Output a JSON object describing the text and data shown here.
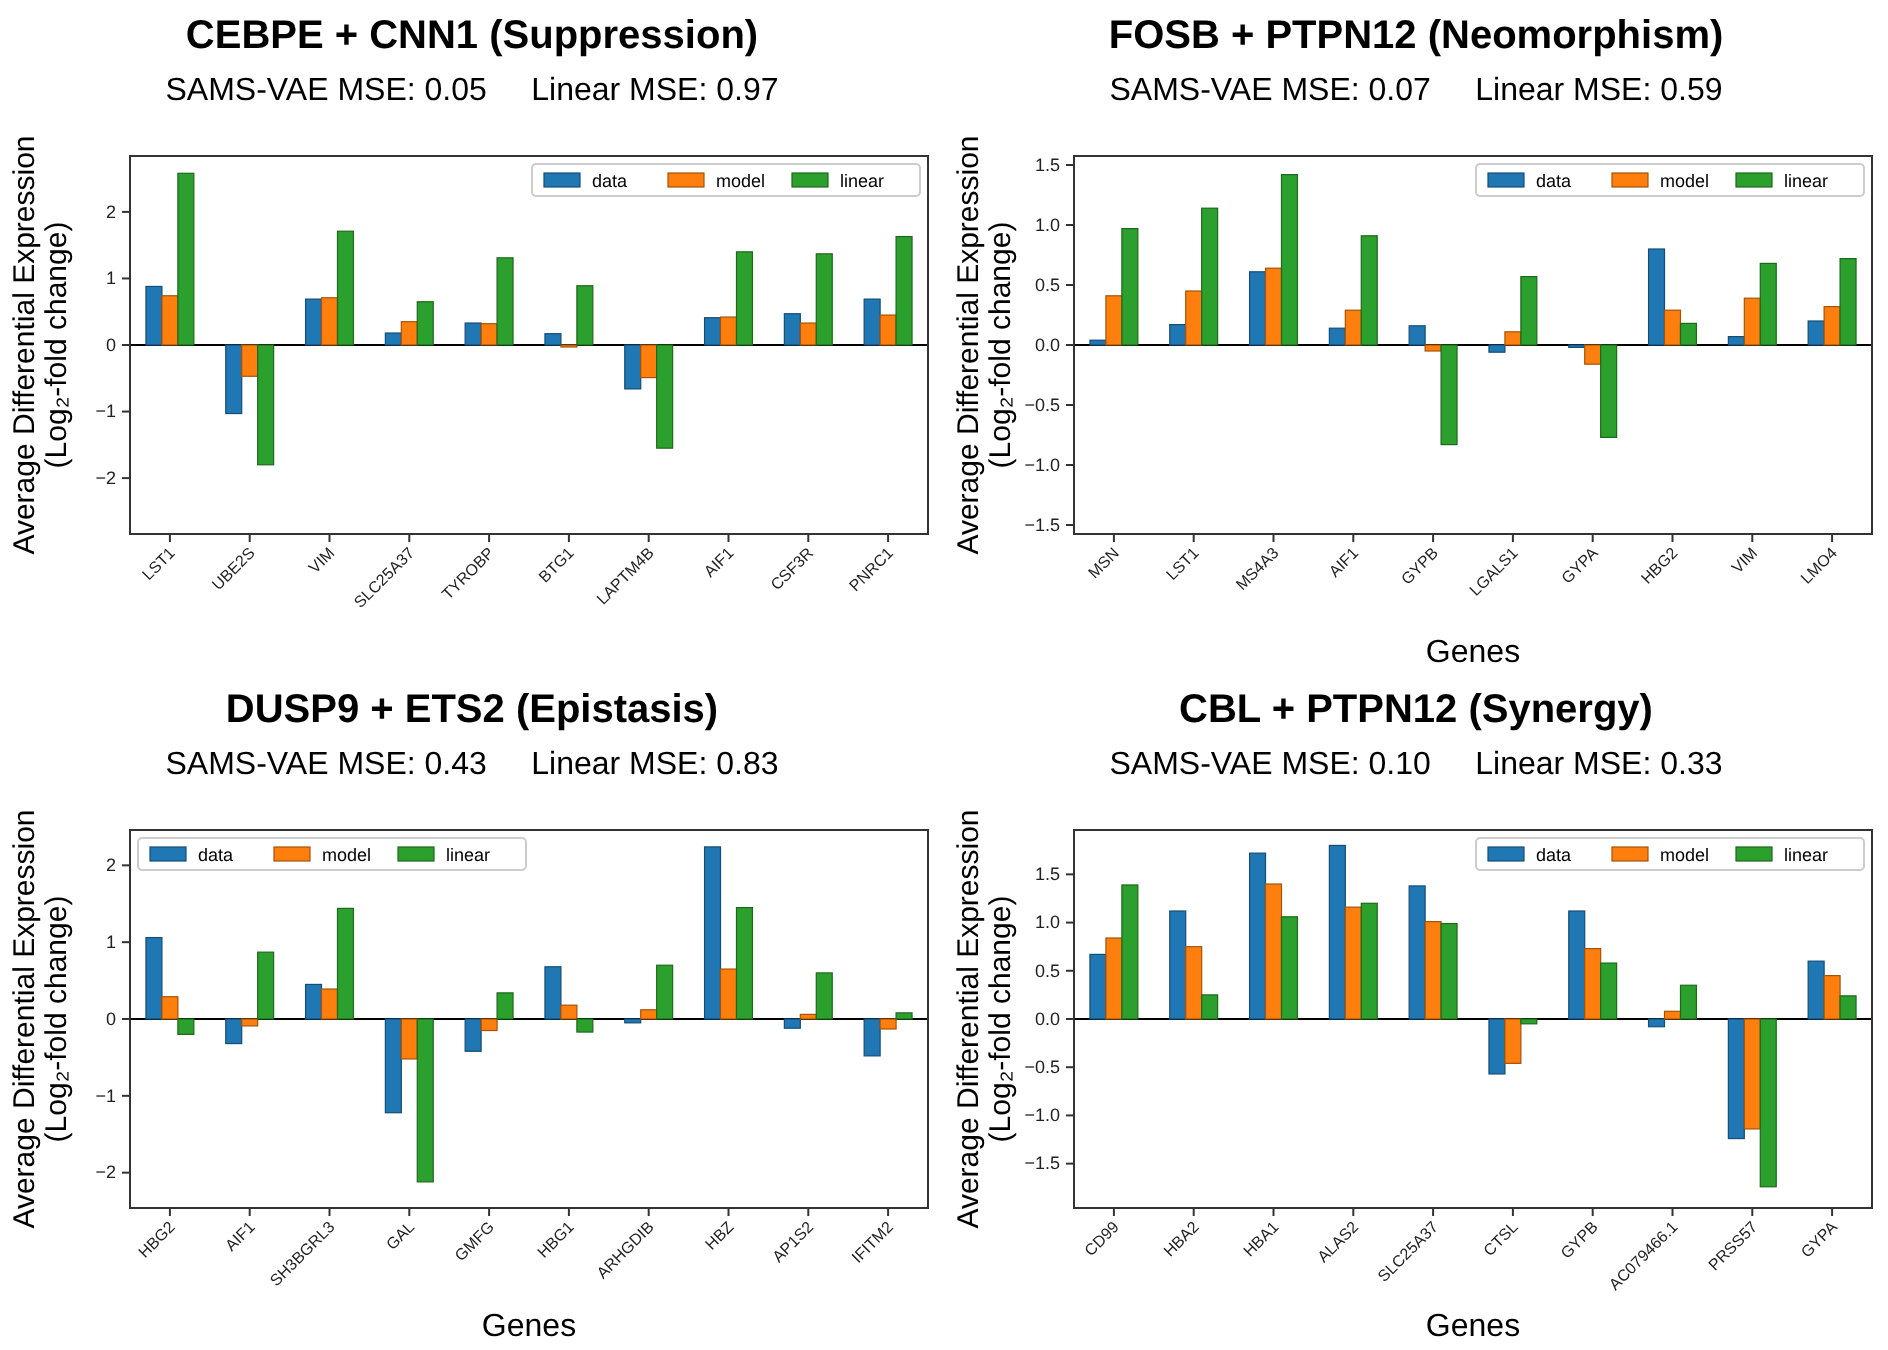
{
  "chart_data": [
    {
      "type": "bar",
      "title": "CEBPE + CNN1 (Suppression)",
      "subtitle": "SAMS-VAE MSE: 0.05     Linear MSE: 0.97",
      "ylabel": "Average Differential Expression\n(Log₂-fold change)",
      "categories": [
        "LST1",
        "UBE2S",
        "VIM",
        "SLC25A37",
        "TYROBP",
        "BTG1",
        "LAPTM4B",
        "AIF1",
        "CSF3R",
        "PNRC1"
      ],
      "series": [
        {
          "name": "data",
          "color": "#1f77b4",
          "values": [
            0.88,
            -1.03,
            0.69,
            0.18,
            0.33,
            0.17,
            -0.66,
            0.41,
            0.47,
            0.69
          ]
        },
        {
          "name": "model",
          "color": "#ff7f0e",
          "values": [
            0.74,
            -0.47,
            0.71,
            0.35,
            0.32,
            -0.03,
            -0.49,
            0.42,
            0.33,
            0.45
          ]
        },
        {
          "name": "linear",
          "color": "#2ca02c",
          "values": [
            2.58,
            -1.8,
            1.71,
            0.65,
            1.31,
            0.89,
            -1.55,
            1.4,
            1.37,
            1.63
          ]
        }
      ],
      "ylim": [
        -2.84,
        2.84
      ],
      "yticks": [
        -2,
        -1,
        0,
        1,
        2
      ],
      "ref_lines": [
        {
          "axis": "y",
          "value": 0,
          "label": null,
          "color": "#000000"
        }
      ],
      "grid": false,
      "legend": "top right"
    },
    {
      "type": "bar",
      "title": "FOSB + PTPN12 (Neomorphism)",
      "subtitle": "SAMS-VAE MSE: 0.07     Linear MSE: 0.59",
      "xlabel": "Genes",
      "ylabel": "Average Differential Expression\n(Log₂-fold change)",
      "categories": [
        "MSN",
        "LST1",
        "MS4A3",
        "AIF1",
        "GYPB",
        "LGALS1",
        "GYPA",
        "HBG2",
        "VIM",
        "LMO4"
      ],
      "series": [
        {
          "name": "data",
          "color": "#1f77b4",
          "values": [
            0.04,
            0.17,
            0.61,
            0.14,
            0.16,
            -0.06,
            -0.02,
            0.8,
            0.07,
            0.2
          ]
        },
        {
          "name": "model",
          "color": "#ff7f0e",
          "values": [
            0.41,
            0.45,
            0.64,
            0.29,
            -0.05,
            0.11,
            -0.16,
            0.29,
            0.39,
            0.32
          ]
        },
        {
          "name": "linear",
          "color": "#2ca02c",
          "values": [
            0.97,
            1.14,
            1.42,
            0.91,
            -0.83,
            0.57,
            -0.77,
            0.18,
            0.68,
            0.72
          ]
        }
      ],
      "ylim": [
        -1.575,
        1.575
      ],
      "yticks": [
        {
          "value": -1.5,
          "label": "−1.5"
        },
        {
          "value": -1,
          "label": "−1.0"
        },
        {
          "value": -0.5,
          "label": "−0.5"
        },
        {
          "value": 0,
          "label": "0.0"
        },
        {
          "value": 0.5,
          "label": "0.5"
        },
        {
          "value": 1,
          "label": "1.0"
        },
        {
          "value": 1.5,
          "label": "1.5"
        }
      ],
      "ref_lines": [
        {
          "axis": "y",
          "value": 0,
          "label": null,
          "color": "#000000"
        }
      ],
      "grid": false,
      "legend": "top right"
    },
    {
      "type": "bar",
      "title": "DUSP9 + ETS2 (Epistasis)",
      "subtitle": "SAMS-VAE MSE: 0.43     Linear MSE: 0.83",
      "xlabel": "Genes",
      "ylabel": "Average Differential Expression\n(Log₂-fold change)",
      "categories": [
        "HBG2",
        "AIF1",
        "SH3BGRL3",
        "GAL",
        "GMFG",
        "HBG1",
        "ARHGDIB",
        "HBZ",
        "AP1S2",
        "IFITM2"
      ],
      "series": [
        {
          "name": "data",
          "color": "#1f77b4",
          "values": [
            1.06,
            -0.32,
            0.45,
            -1.22,
            -0.42,
            0.68,
            -0.05,
            2.24,
            -0.12,
            -0.48
          ]
        },
        {
          "name": "model",
          "color": "#ff7f0e",
          "values": [
            0.29,
            -0.09,
            0.39,
            -0.52,
            -0.15,
            0.18,
            0.12,
            0.65,
            0.06,
            -0.13
          ]
        },
        {
          "name": "linear",
          "color": "#2ca02c",
          "values": [
            -0.2,
            0.87,
            1.44,
            -2.12,
            0.34,
            -0.17,
            0.7,
            1.45,
            0.6,
            0.08
          ]
        }
      ],
      "ylim": [
        -2.46,
        2.46
      ],
      "yticks": [
        {
          "value": -2,
          "label": "−2"
        },
        {
          "value": -1,
          "label": "−1"
        },
        0,
        1,
        2
      ],
      "ref_lines": [
        {
          "axis": "y",
          "value": 0,
          "label": null,
          "color": "#000000"
        }
      ],
      "grid": false,
      "legend": "top left"
    },
    {
      "type": "bar",
      "title": "CBL + PTPN12 (Synergy)",
      "subtitle": "SAMS-VAE MSE: 0.10     Linear MSE: 0.33",
      "xlabel": "Genes",
      "ylabel": "Average Differential Expression\n(Log₂-fold change)",
      "categories": [
        "CD99",
        "HBA2",
        "HBA1",
        "ALAS2",
        "SLC25A37",
        "CTSL",
        "GYPB",
        "AC079466.1",
        "PRSS57",
        "GYPA"
      ],
      "series": [
        {
          "name": "data",
          "color": "#1f77b4",
          "values": [
            0.67,
            1.12,
            1.72,
            1.8,
            1.38,
            -0.57,
            1.12,
            -0.08,
            -1.24,
            0.6
          ]
        },
        {
          "name": "model",
          "color": "#ff7f0e",
          "values": [
            0.84,
            0.75,
            1.4,
            1.16,
            1.01,
            -0.46,
            0.73,
            0.08,
            -1.14,
            0.45
          ]
        },
        {
          "name": "linear",
          "color": "#2ca02c",
          "values": [
            1.39,
            0.25,
            1.06,
            1.2,
            0.99,
            -0.05,
            0.58,
            0.35,
            -1.74,
            0.24
          ]
        }
      ],
      "ylim": [
        -1.96,
        1.96
      ],
      "yticks": [
        {
          "value": -1.5,
          "label": "−1.5"
        },
        {
          "value": -1,
          "label": "−1.0"
        },
        {
          "value": -0.5,
          "label": "−0.5"
        },
        {
          "value": 0,
          "label": "0.0"
        },
        {
          "value": 0.5,
          "label": "0.5"
        },
        {
          "value": 1,
          "label": "1.0"
        },
        {
          "value": 1.5,
          "label": "1.5"
        }
      ],
      "ref_lines": [
        {
          "axis": "y",
          "value": 0,
          "label": null,
          "color": "#000000"
        }
      ],
      "grid": false,
      "legend": "top right"
    }
  ]
}
